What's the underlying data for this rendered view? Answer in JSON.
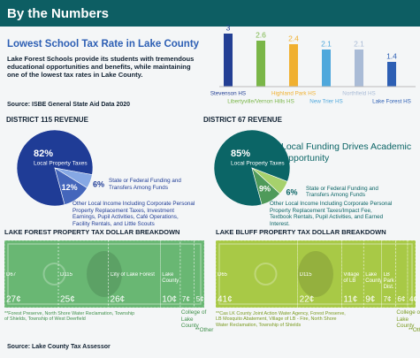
{
  "header": {
    "title": "By the Numbers"
  },
  "intro": {
    "heading": "Lowest School Tax Rate in Lake County",
    "text": "Lake Forest Schools provide its students with tremendous educational opportunities and benefits, while maintaining one of the lowest tax rates in Lake County.",
    "source": "Source: ISBE General State Aid Data 2020"
  },
  "pie_heading": "Local Funding Drives Academic Opportunity",
  "source": "Source: Lake County Tax Assessor",
  "chart_data": [
    {
      "type": "bar",
      "categories": [
        "Stevenson HS",
        "Libertyville/Vernon Hills HS",
        "Highland Park HS",
        "New Trier HS",
        "Northfield HS",
        "Lake Forest HS"
      ],
      "values": [
        3,
        2.6,
        2.4,
        2.1,
        2.1,
        1.4
      ],
      "colors": [
        "#233f94",
        "#7ab648",
        "#f0b030",
        "#4fa8dc",
        "#a9bbd6",
        "#2d5fb4"
      ]
    },
    {
      "type": "pie",
      "title": "DISTRICT 115 REVENUE",
      "categories": [
        "Local Property Taxes",
        "State or Federal Funding and Transfers Among Funds",
        "Other Local Income Including Corporate Personal Property Replacement Taxes, Investment Earnings, Pupil Activities, Café Operations, Facility Rentals, and Little Scouts"
      ],
      "values": [
        82,
        6,
        12
      ],
      "value_labels": [
        "82%",
        "6%",
        "12%"
      ],
      "colors": [
        "#1f3c96",
        "#86a8e4",
        "#4466bb"
      ]
    },
    {
      "type": "pie",
      "title": "DISTRICT 67 REVENUE",
      "categories": [
        "Local Property Taxes",
        "State or Federal Funding and Transfers Among Funds",
        "Other Local Income Including Corporate Personal Property Replacement Taxes/Impact Fee, Textbook Rentals, Pupil Activities, and Earned Interest."
      ],
      "values": [
        85,
        6,
        9
      ],
      "value_labels": [
        "85%",
        "6%",
        "9%"
      ],
      "colors": [
        "#0b6566",
        "#a6d16c",
        "#4f9a5a"
      ]
    },
    {
      "type": "dollar",
      "title": "LAKE FOREST PROPERTY TAX DOLLAR BREAKDOWN",
      "categories": [
        "D67",
        "D115",
        "City of Lake Forest",
        "Lake County",
        "College of Lake County",
        "**Other"
      ],
      "values": [
        27,
        25,
        26,
        10,
        7,
        5
      ],
      "value_labels": [
        "27¢",
        "25¢",
        "26¢",
        "10¢",
        "7¢",
        "5¢"
      ],
      "color": "#5fb36a",
      "note": "**Forest Preserve, North Shore Water Reclamation, Township of Shields, Township of West Deerfield"
    },
    {
      "type": "dollar",
      "title": "LAKE BLUFF PROPERTY TAX DOLLAR BREAKDOWN",
      "categories": [
        "D65",
        "D115",
        "Village of LB",
        "Lake County",
        "LB Park Dist.",
        "College of Lake County",
        "**Other"
      ],
      "values": [
        41,
        22,
        11,
        9,
        7,
        6,
        4
      ],
      "value_labels": [
        "41¢",
        "22¢",
        "11¢",
        "9¢",
        "7¢",
        "6¢",
        "4¢"
      ],
      "color": "#a3c63a",
      "note": "**Cas LK County Joint Action Water Agency, Forest Preserve, LB Mosquito Abatement, Village of LB - Fire, North Shore Water Reclamation, Township of Shields"
    }
  ]
}
